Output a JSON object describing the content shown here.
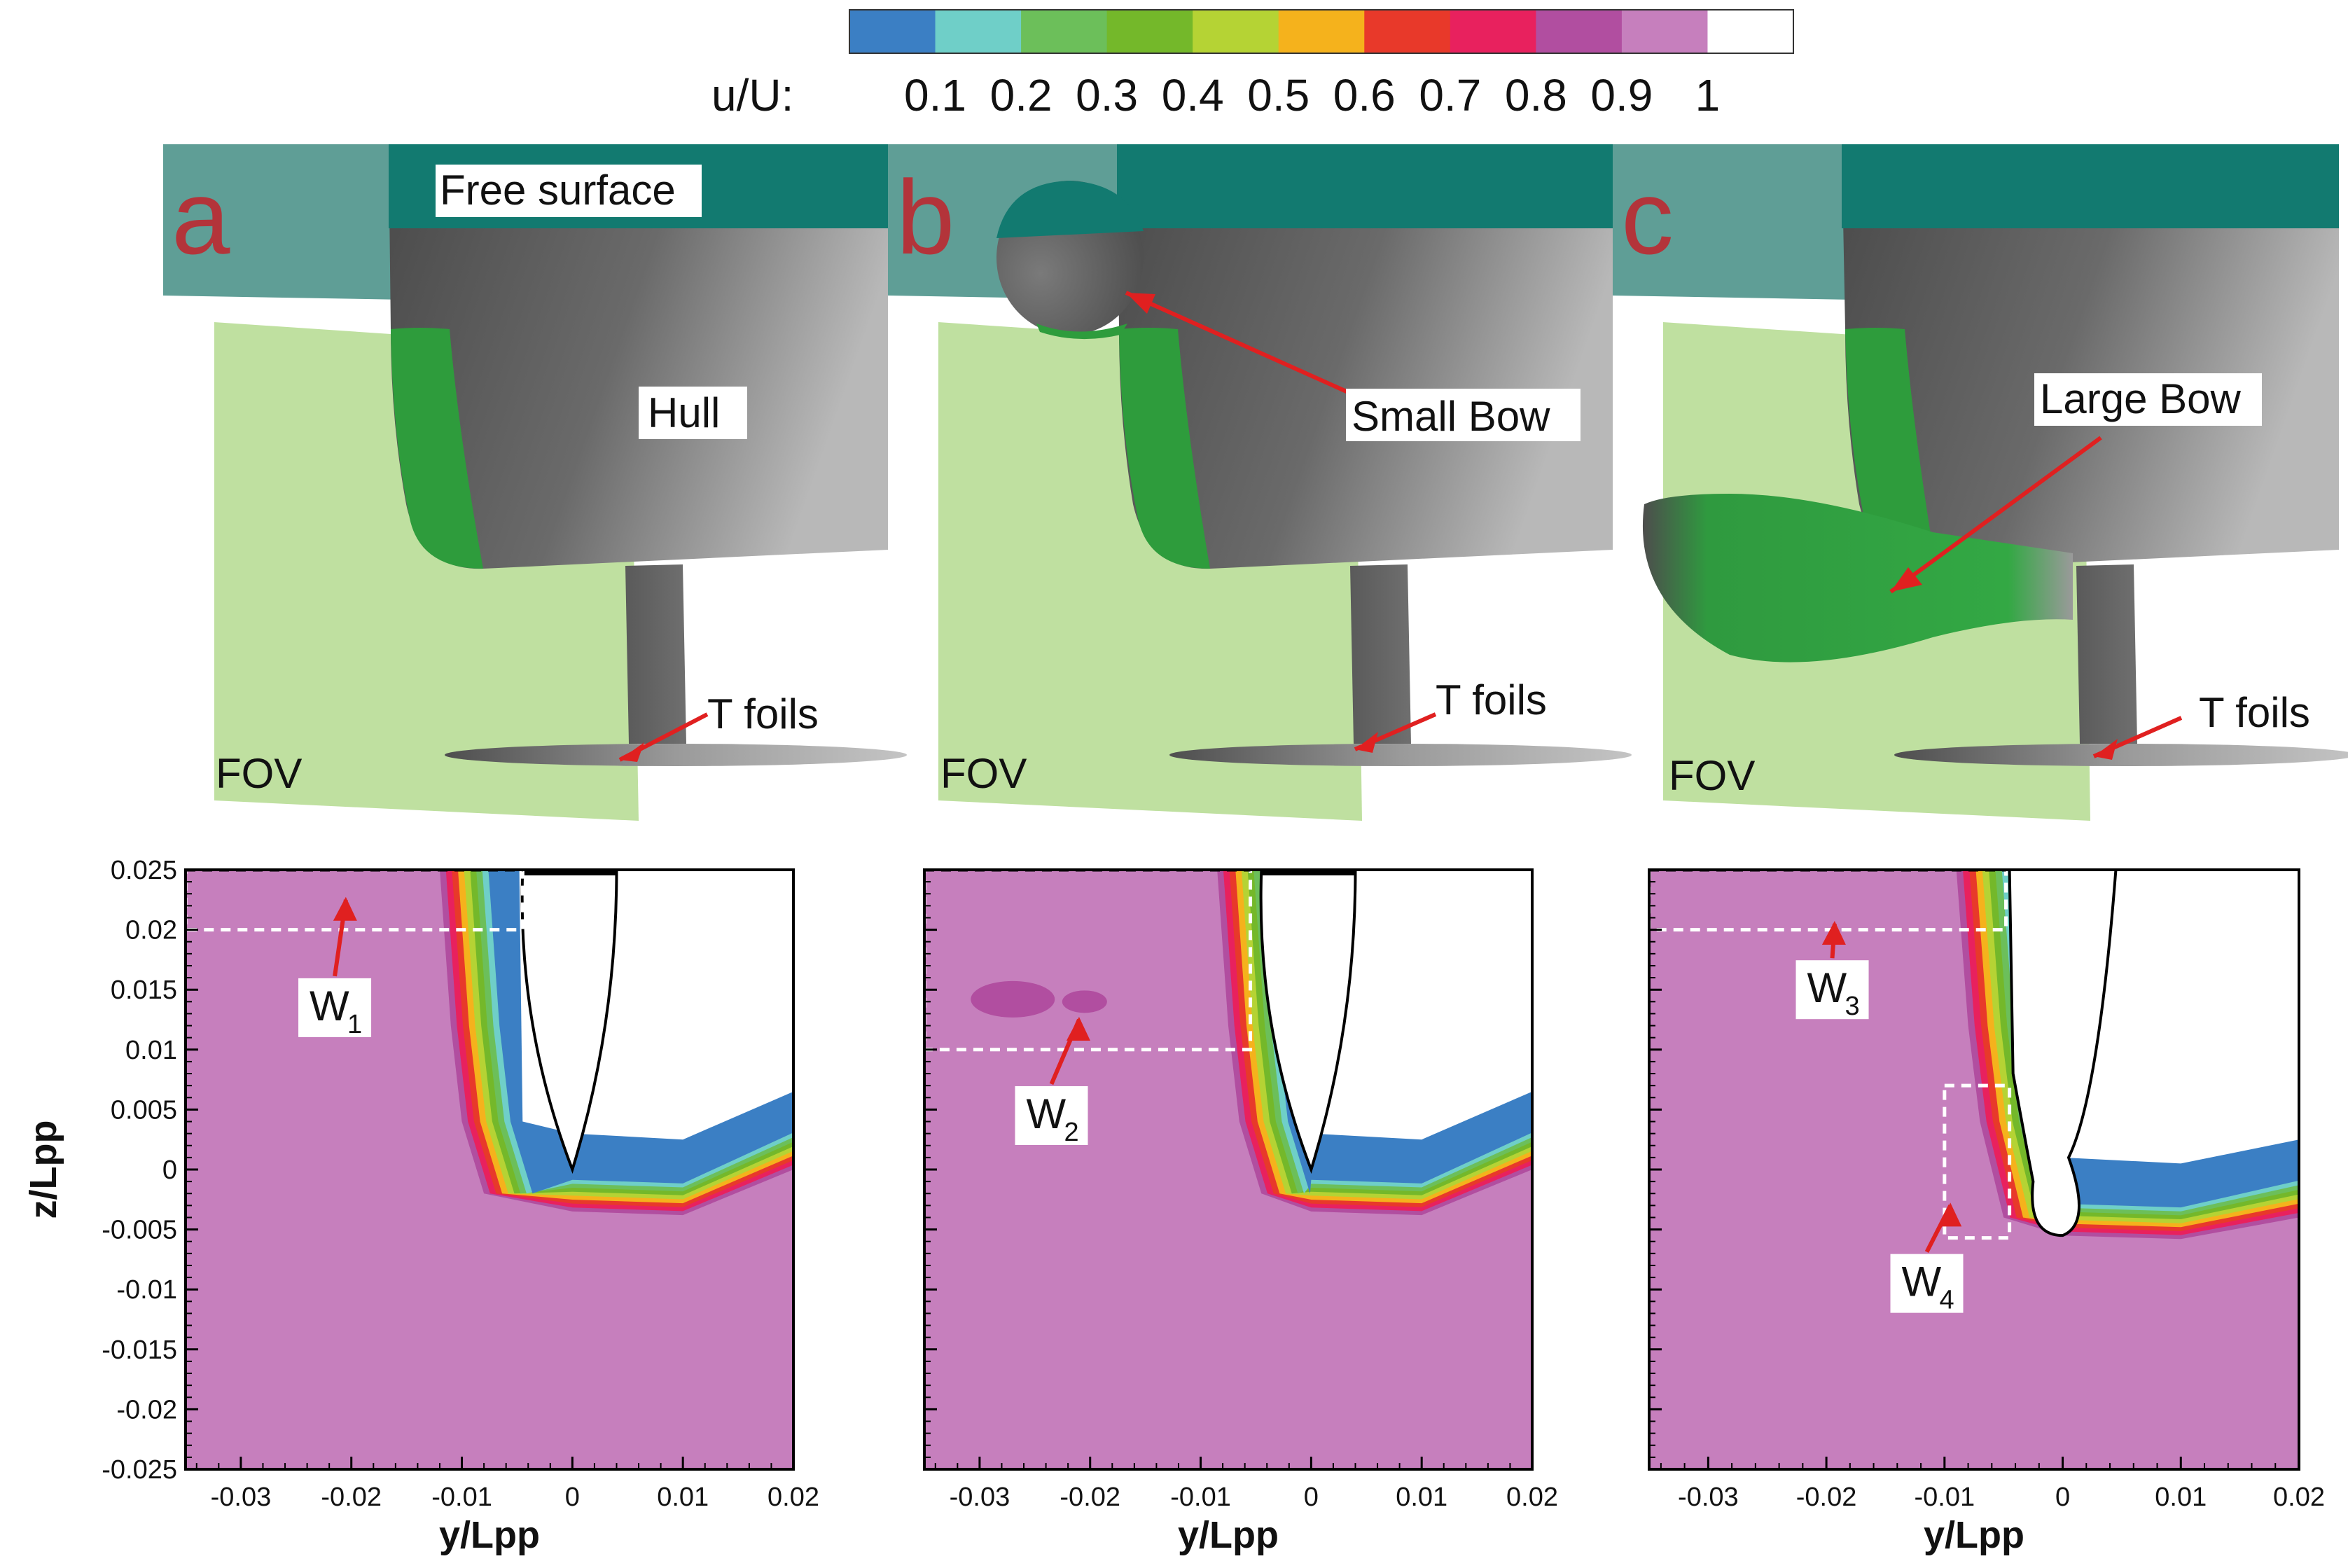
{
  "colorbar": {
    "title": "u/U:",
    "tick_labels": [
      "0.1",
      "0.2",
      "0.3",
      "0.4",
      "0.5",
      "0.6",
      "0.7",
      "0.8",
      "0.9",
      "1"
    ],
    "colors": [
      "#3b7fc4",
      "#6fcfc8",
      "#6cbf5a",
      "#74b82a",
      "#b5d334",
      "#f5b21c",
      "#e8392a",
      "#e8215e",
      "#b14ea0",
      "#c67fbd",
      "#ffffff"
    ]
  },
  "schematics": [
    {
      "letter": "a",
      "labels": {
        "free_surface": "Free surface",
        "hull": "Hull",
        "foils": "T foils",
        "fov": "FOV"
      }
    },
    {
      "letter": "b",
      "labels": {
        "bow": "Small Bow",
        "foils": "T foils",
        "fov": "FOV"
      }
    },
    {
      "letter": "c",
      "labels": {
        "bow": "Large Bow",
        "foils": "T foils",
        "fov": "FOV"
      }
    }
  ],
  "chart_data": [
    {
      "type": "contour",
      "xlabel": "y/Lpp",
      "ylabel": "z/Lpp",
      "xlim": [
        -0.035,
        0.02
      ],
      "ylim": [
        -0.025,
        0.025
      ],
      "xticks": [
        "-0.03",
        "-0.02",
        "-0.01",
        "0",
        "0.01",
        "0.02"
      ],
      "yticks": [
        "0.025",
        "0.02",
        "0.015",
        "0.01",
        "0.005",
        "0",
        "-0.005",
        "-0.01",
        "-0.015",
        "-0.02",
        "-0.025"
      ],
      "annotations": [
        {
          "text": "W",
          "sub": "1"
        }
      ]
    },
    {
      "type": "contour",
      "xlabel": "y/Lpp",
      "xlim": [
        -0.035,
        0.02
      ],
      "ylim": [
        -0.025,
        0.025
      ],
      "xticks": [
        "-0.03",
        "-0.02",
        "-0.01",
        "0",
        "0.01",
        "0.02"
      ],
      "annotations": [
        {
          "text": "W",
          "sub": "2"
        }
      ]
    },
    {
      "type": "contour",
      "xlabel": "y/Lpp",
      "xlim": [
        -0.035,
        0.02
      ],
      "ylim": [
        -0.025,
        0.025
      ],
      "xticks": [
        "-0.03",
        "-0.02",
        "-0.01",
        "0",
        "0.01",
        "0.02"
      ],
      "annotations": [
        {
          "text": "W",
          "sub": "3"
        },
        {
          "text": "W",
          "sub": "4"
        }
      ]
    }
  ]
}
